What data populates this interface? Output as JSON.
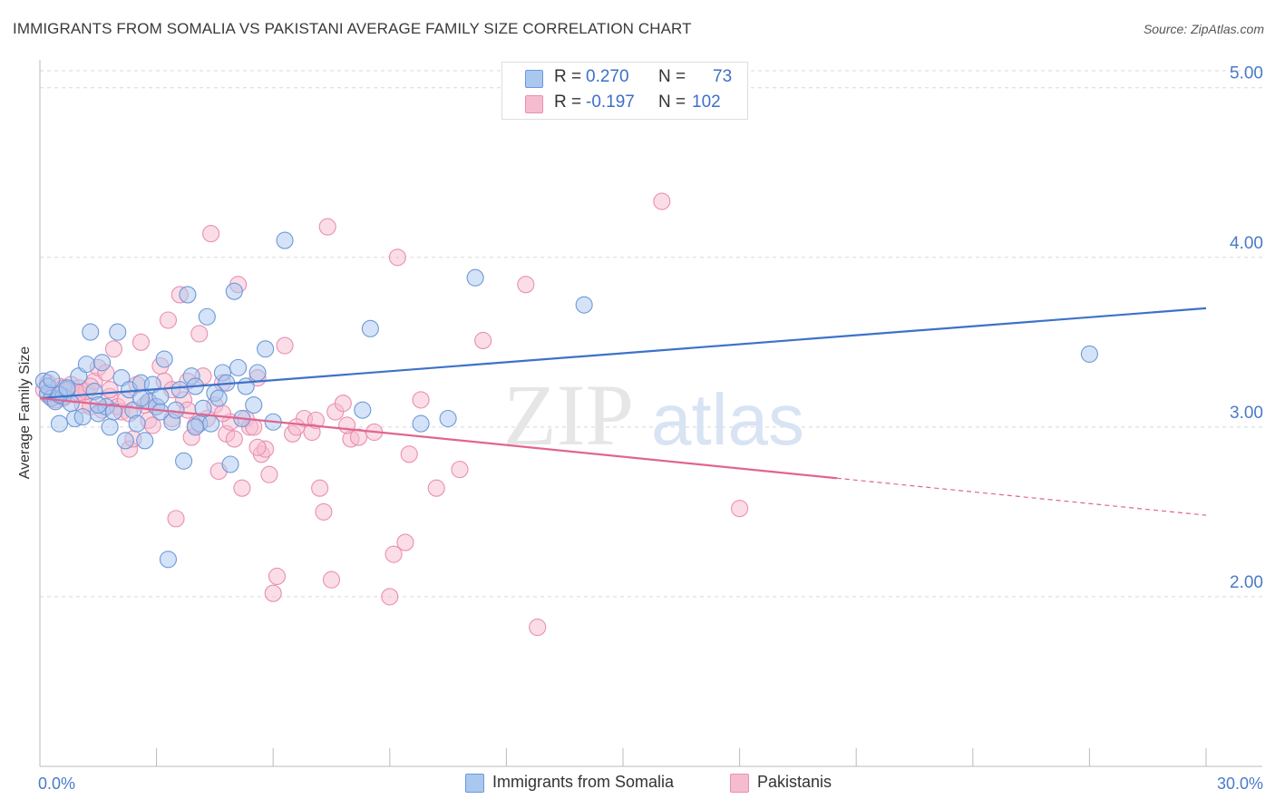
{
  "header": {
    "title": "IMMIGRANTS FROM SOMALIA VS PAKISTANI AVERAGE FAMILY SIZE CORRELATION CHART",
    "source": "Source: ZipAtlas.com"
  },
  "stats": {
    "row1": {
      "r_label": "R =",
      "r_value": "0.270",
      "n_label": "N =",
      "n_value": "73"
    },
    "row2": {
      "r_label": "R =",
      "r_value": "-0.197",
      "n_label": "N =",
      "n_value": "102"
    }
  },
  "legend": {
    "series1": "Immigrants from Somalia",
    "series2": "Pakistanis"
  },
  "watermark": {
    "zip": "ZIP",
    "atlas": "atlas"
  },
  "colors": {
    "blue": "#3d72c9",
    "blue_fill": "#aac7f0",
    "blue_edge": "#6d98d8",
    "pink": "#e0658f",
    "pink_fill": "#f5bcd0",
    "pink_edge": "#ea8fb0",
    "tick_label": "#4a7ac9",
    "grid": "#d8d8d8"
  },
  "chart_data": {
    "type": "scatter",
    "title": "IMMIGRANTS FROM SOMALIA VS PAKISTANI AVERAGE FAMILY SIZE CORRELATION CHART",
    "xlabel": "",
    "ylabel": "Average Family Size",
    "xlim": [
      0,
      30
    ],
    "ylim": [
      1.0,
      5.1
    ],
    "x_tick_labels": [
      "0.0%",
      "30.0%"
    ],
    "y_ticks": [
      2.0,
      3.0,
      4.0,
      5.0
    ],
    "y_tick_labels": [
      "2.00",
      "3.00",
      "4.00",
      "5.00"
    ],
    "grid": true,
    "legend_position": "bottom",
    "series": [
      {
        "name": "Immigrants from Somalia",
        "color": "#3d72c9",
        "trend": {
          "x0": 0,
          "y0": 3.17,
          "x1": 30,
          "y1": 3.7,
          "solid_to": 30
        },
        "points": [
          [
            0.1,
            3.27
          ],
          [
            0.2,
            3.2
          ],
          [
            0.3,
            3.17
          ],
          [
            0.4,
            3.15
          ],
          [
            0.5,
            3.02
          ],
          [
            0.6,
            3.18
          ],
          [
            0.7,
            3.22
          ],
          [
            0.8,
            3.14
          ],
          [
            0.9,
            3.05
          ],
          [
            1.0,
            3.3
          ],
          [
            1.1,
            3.06
          ],
          [
            1.2,
            3.37
          ],
          [
            1.3,
            3.56
          ],
          [
            1.4,
            3.21
          ],
          [
            1.5,
            3.08
          ],
          [
            1.6,
            3.38
          ],
          [
            1.7,
            3.12
          ],
          [
            1.8,
            3.0
          ],
          [
            1.9,
            3.09
          ],
          [
            2.0,
            3.56
          ],
          [
            2.1,
            3.29
          ],
          [
            2.2,
            2.92
          ],
          [
            2.3,
            3.22
          ],
          [
            2.4,
            3.1
          ],
          [
            2.5,
            3.02
          ],
          [
            2.6,
            3.26
          ],
          [
            2.7,
            2.92
          ],
          [
            2.8,
            3.15
          ],
          [
            2.9,
            3.25
          ],
          [
            3.0,
            3.12
          ],
          [
            3.1,
            3.09
          ],
          [
            3.2,
            3.4
          ],
          [
            3.3,
            2.22
          ],
          [
            3.4,
            3.03
          ],
          [
            3.5,
            3.1
          ],
          [
            3.6,
            3.22
          ],
          [
            3.7,
            2.8
          ],
          [
            3.8,
            3.78
          ],
          [
            3.9,
            3.3
          ],
          [
            4.0,
            3.24
          ],
          [
            4.1,
            3.02
          ],
          [
            4.2,
            3.11
          ],
          [
            4.3,
            3.65
          ],
          [
            4.4,
            3.02
          ],
          [
            4.5,
            3.2
          ],
          [
            4.6,
            3.17
          ],
          [
            4.7,
            3.32
          ],
          [
            4.8,
            3.26
          ],
          [
            4.9,
            2.78
          ],
          [
            5.0,
            3.8
          ],
          [
            5.1,
            3.35
          ],
          [
            5.2,
            3.05
          ],
          [
            5.3,
            3.24
          ],
          [
            5.5,
            3.13
          ],
          [
            5.6,
            3.32
          ],
          [
            5.8,
            3.46
          ],
          [
            6.0,
            3.03
          ],
          [
            6.3,
            4.1
          ],
          [
            8.5,
            3.58
          ],
          [
            8.3,
            3.1
          ],
          [
            9.8,
            3.02
          ],
          [
            10.5,
            3.05
          ],
          [
            11.2,
            3.88
          ],
          [
            14.0,
            3.72
          ],
          [
            27.0,
            3.43
          ],
          [
            0.2,
            3.24
          ],
          [
            0.3,
            3.28
          ],
          [
            0.5,
            3.19
          ],
          [
            0.7,
            3.23
          ],
          [
            1.5,
            3.13
          ],
          [
            2.6,
            3.17
          ],
          [
            3.1,
            3.18
          ],
          [
            4.0,
            3.0
          ]
        ]
      },
      {
        "name": "Pakistanis",
        "color": "#e0658f",
        "trend": {
          "x0": 0,
          "y0": 3.17,
          "x1": 30,
          "y1": 2.48,
          "solid_to": 20.5
        },
        "points": [
          [
            0.1,
            3.22
          ],
          [
            0.2,
            3.26
          ],
          [
            0.3,
            3.18
          ],
          [
            0.4,
            3.2
          ],
          [
            0.5,
            3.24
          ],
          [
            0.6,
            3.17
          ],
          [
            0.7,
            3.21
          ],
          [
            0.8,
            3.25
          ],
          [
            0.9,
            3.19
          ],
          [
            1.0,
            3.23
          ],
          [
            1.1,
            3.13
          ],
          [
            1.2,
            3.21
          ],
          [
            1.3,
            3.12
          ],
          [
            1.4,
            3.27
          ],
          [
            1.5,
            3.35
          ],
          [
            1.6,
            3.1
          ],
          [
            1.7,
            3.32
          ],
          [
            1.8,
            3.18
          ],
          [
            1.9,
            3.46
          ],
          [
            2.0,
            3.12
          ],
          [
            2.1,
            3.09
          ],
          [
            2.2,
            3.16
          ],
          [
            2.3,
            2.87
          ],
          [
            2.4,
            2.93
          ],
          [
            2.5,
            3.25
          ],
          [
            2.6,
            3.5
          ],
          [
            2.7,
            3.13
          ],
          [
            2.8,
            3.04
          ],
          [
            2.9,
            3.01
          ],
          [
            3.0,
            3.12
          ],
          [
            3.1,
            3.36
          ],
          [
            3.2,
            3.27
          ],
          [
            3.3,
            3.63
          ],
          [
            3.4,
            3.05
          ],
          [
            3.5,
            2.46
          ],
          [
            3.6,
            3.78
          ],
          [
            3.7,
            3.16
          ],
          [
            3.8,
            3.27
          ],
          [
            3.9,
            2.94
          ],
          [
            4.0,
            3.01
          ],
          [
            4.1,
            3.55
          ],
          [
            4.2,
            3.3
          ],
          [
            4.3,
            3.05
          ],
          [
            4.4,
            4.14
          ],
          [
            4.5,
            3.13
          ],
          [
            4.6,
            2.74
          ],
          [
            4.7,
            3.26
          ],
          [
            4.8,
            2.96
          ],
          [
            4.9,
            3.03
          ],
          [
            5.0,
            2.93
          ],
          [
            5.1,
            3.84
          ],
          [
            5.2,
            2.64
          ],
          [
            5.3,
            3.05
          ],
          [
            5.4,
            3.0
          ],
          [
            5.5,
            3.0
          ],
          [
            5.6,
            3.29
          ],
          [
            5.7,
            2.84
          ],
          [
            5.8,
            2.87
          ],
          [
            5.9,
            2.72
          ],
          [
            6.0,
            2.02
          ],
          [
            6.1,
            2.12
          ],
          [
            6.3,
            3.48
          ],
          [
            6.5,
            2.96
          ],
          [
            6.8,
            3.05
          ],
          [
            7.0,
            2.97
          ],
          [
            7.1,
            3.04
          ],
          [
            7.2,
            2.64
          ],
          [
            7.3,
            2.5
          ],
          [
            7.4,
            4.18
          ],
          [
            7.5,
            2.1
          ],
          [
            7.6,
            3.09
          ],
          [
            7.8,
            3.14
          ],
          [
            8.0,
            2.93
          ],
          [
            8.2,
            2.94
          ],
          [
            8.6,
            2.97
          ],
          [
            9.0,
            2.0
          ],
          [
            9.1,
            2.25
          ],
          [
            9.2,
            4.0
          ],
          [
            9.4,
            2.32
          ],
          [
            9.5,
            2.84
          ],
          [
            9.8,
            3.16
          ],
          [
            10.2,
            2.64
          ],
          [
            10.8,
            2.75
          ],
          [
            11.4,
            3.51
          ],
          [
            12.5,
            3.84
          ],
          [
            12.8,
            1.82
          ],
          [
            16.0,
            4.33
          ],
          [
            18.0,
            2.52
          ],
          [
            0.2,
            3.19
          ],
          [
            0.4,
            3.16
          ],
          [
            0.6,
            3.23
          ],
          [
            1.0,
            3.2
          ],
          [
            1.3,
            3.24
          ],
          [
            1.8,
            3.22
          ],
          [
            2.3,
            3.08
          ],
          [
            2.8,
            3.15
          ],
          [
            3.4,
            3.22
          ],
          [
            3.8,
            3.1
          ],
          [
            4.7,
            3.08
          ],
          [
            5.6,
            2.88
          ],
          [
            6.6,
            3.0
          ],
          [
            7.9,
            3.01
          ]
        ]
      }
    ]
  }
}
